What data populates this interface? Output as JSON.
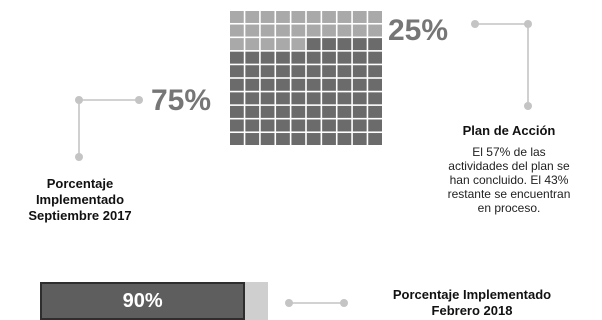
{
  "chart_data": [
    {
      "type": "waffle",
      "rows": 10,
      "columns": 10,
      "segments": [
        {
          "label": "25%",
          "value": 25,
          "color": "#a9a9a9"
        },
        {
          "label": "75%",
          "value": 75,
          "color": "#6b6b6b"
        }
      ]
    },
    {
      "type": "progress",
      "value": 90,
      "label": "90%",
      "fill_color": "#5e5e5e",
      "track_color": "#cfcfcf"
    }
  ],
  "labels": {
    "top_pct": "25%",
    "main_pct": "75%",
    "sept_heading": [
      "Porcentaje",
      "Implementado",
      "Septiembre 2017"
    ],
    "plan_heading": "Plan de Acción",
    "plan_text": [
      "El 57% de las",
      "actividades del plan se",
      "han concluido. El 43%",
      "restante se encuentran",
      "en proceso."
    ],
    "feb_heading": [
      "Porcentaje Implementado",
      "Febrero 2018"
    ]
  },
  "colors": {
    "cell_light": "#a9a9a9",
    "cell_dark": "#6b6b6b",
    "grid_gap": "#ffffff",
    "connector": "#c4c4c4",
    "percent_text": "#767676"
  }
}
